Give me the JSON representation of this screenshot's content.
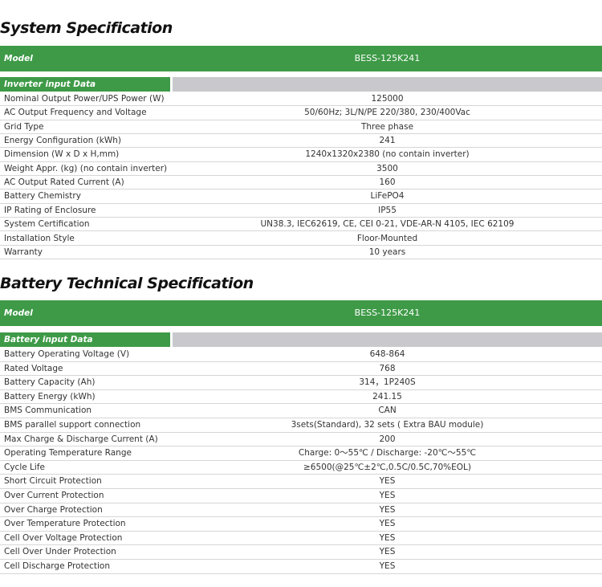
{
  "sections": [
    {
      "title": "System Specification",
      "header": {
        "label": "Model",
        "value": "BESS-125K241"
      },
      "group": "Inverter input Data",
      "rows": [
        [
          "Nominal Output Power/UPS Power (W)",
          "125000"
        ],
        [
          "AC Output Frequency and Voltage",
          "50/60Hz; 3L/N/PE 220/380, 230/400Vac"
        ],
        [
          "Grid Type",
          "Three phase"
        ],
        [
          "Energy Configuration (kWh)",
          "241"
        ],
        [
          "Dimension (W x D x H,mm)",
          "1240x1320x2380 (no contain inverter)"
        ],
        [
          "Weight Appr. (kg) (no contain inverter)",
          "3500"
        ],
        [
          "AC Output Rated Current (A)",
          "160"
        ],
        [
          "Battery Chemistry",
          "LiFePO4"
        ],
        [
          "IP Rating of Enclosure",
          "IP55"
        ],
        [
          "System Certification",
          "UN38.3, IEC62619, CE, CEI 0-21, VDE-AR-N 4105, IEC 62109"
        ],
        [
          "Installation Style",
          "Floor-Mounted"
        ],
        [
          "Warranty",
          "10 years"
        ]
      ]
    },
    {
      "title": "Battery Technical Specification",
      "header": {
        "label": "Model",
        "value": "BESS-125K241"
      },
      "group": "Battery input Data",
      "rows": [
        [
          "Battery Operating Voltage (V)",
          "648-864"
        ],
        [
          "Rated Voltage",
          "768"
        ],
        [
          "Battery Capacity (Ah)",
          "314，1P240S"
        ],
        [
          "Battery Energy (kWh)",
          "241.15"
        ],
        [
          "BMS Communication",
          "CAN"
        ],
        [
          "BMS parallel support connection",
          "3sets(Standard), 32 sets ( Extra BAU module)"
        ],
        [
          "Max Charge & Discharge Current (A)",
          "200"
        ],
        [
          "Operating Temperature Range",
          "Charge: 0～55℃ / Discharge: -20℃～55℃"
        ],
        [
          "Cycle Life",
          "≥6500(@25℃±2℃,0.5C/0.5C,70%EOL)"
        ],
        [
          "Short Circuit Protection",
          "YES"
        ],
        [
          "Over Current Protection",
          "YES"
        ],
        [
          "Over Charge Protection",
          "YES"
        ],
        [
          "Over Temperature Protection",
          "YES"
        ],
        [
          "Cell Over Voltage Protection",
          "YES"
        ],
        [
          "Cell Over Under Protection",
          "YES"
        ],
        [
          "Cell Discharge Protection",
          "YES"
        ]
      ]
    }
  ]
}
